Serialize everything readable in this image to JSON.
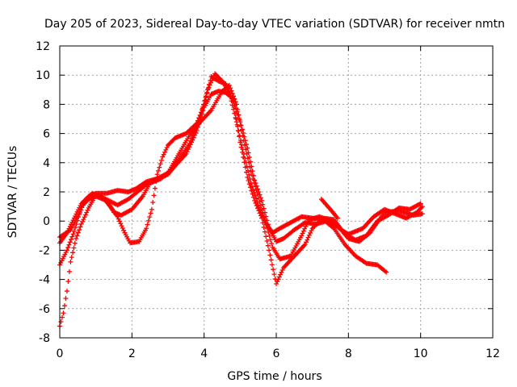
{
  "chart_data": {
    "type": "scatter",
    "title": "Day 205 of 2023, Sidereal Day-to-day VTEC variation (SDTVAR) for receiver nmtn",
    "xlabel": "GPS time / hours",
    "ylabel": "SDTVAR / TECUs",
    "xlim": [
      0,
      12
    ],
    "ylim": [
      -8,
      12
    ],
    "xticks": [
      "0",
      "2",
      "4",
      "6",
      "8",
      "10",
      "12"
    ],
    "yticks": [
      "-8",
      "-6",
      "-4",
      "-2",
      "0",
      "2",
      "4",
      "6",
      "8",
      "10",
      "12"
    ],
    "grid": true,
    "marker": "+",
    "color": "#ff0000",
    "series": [
      {
        "points": [
          [
            0,
            -1.1
          ],
          [
            0.3,
            -0.6
          ],
          [
            0.5,
            0.3
          ],
          [
            0.7,
            1.4
          ],
          [
            0.9,
            1.9
          ],
          [
            1.2,
            1.6
          ],
          [
            1.6,
            1.1
          ],
          [
            1.9,
            1.5
          ],
          [
            2.2,
            2.1
          ],
          [
            2.5,
            2.7
          ],
          [
            2.8,
            3.0
          ],
          [
            3.0,
            3.2
          ],
          [
            3.2,
            3.8
          ],
          [
            3.5,
            4.6
          ],
          [
            3.8,
            6.2
          ],
          [
            4.0,
            7.8
          ],
          [
            4.2,
            8.7
          ],
          [
            4.4,
            8.9
          ],
          [
            4.6,
            8.8
          ],
          [
            4.8,
            8.4
          ],
          [
            5.0,
            6.8
          ],
          [
            5.2,
            5.0
          ],
          [
            5.4,
            2.8
          ],
          [
            5.6,
            1.4
          ],
          [
            5.8,
            -0.5
          ],
          [
            6.0,
            -1.4
          ],
          [
            6.2,
            -1.2
          ],
          [
            6.5,
            -0.6
          ],
          [
            6.8,
            -0.1
          ],
          [
            7.1,
            -0.2
          ],
          [
            7.4,
            0.0
          ],
          [
            7.7,
            -0.3
          ],
          [
            8.0,
            -1.2
          ],
          [
            8.3,
            -1.4
          ],
          [
            8.6,
            -0.8
          ],
          [
            9.0,
            0.6
          ],
          [
            9.4,
            0.7
          ],
          [
            9.8,
            0.4
          ],
          [
            10.05,
            0.5
          ]
        ]
      },
      {
        "points": [
          [
            0,
            -3.0
          ],
          [
            0.2,
            -2.0
          ],
          [
            0.4,
            -0.7
          ],
          [
            0.6,
            1.0
          ],
          [
            0.8,
            1.5
          ],
          [
            1.0,
            1.7
          ],
          [
            1.3,
            1.4
          ],
          [
            1.5,
            0.6
          ],
          [
            1.7,
            0.4
          ],
          [
            2.0,
            0.8
          ],
          [
            2.3,
            1.7
          ],
          [
            2.5,
            2.6
          ],
          [
            2.8,
            2.9
          ],
          [
            3.0,
            3.3
          ],
          [
            3.3,
            4.6
          ],
          [
            3.6,
            5.9
          ],
          [
            3.9,
            6.8
          ],
          [
            4.2,
            7.6
          ],
          [
            4.5,
            8.9
          ],
          [
            4.7,
            9.3
          ],
          [
            4.9,
            8.0
          ],
          [
            5.1,
            5.5
          ],
          [
            5.3,
            3.4
          ],
          [
            5.6,
            0.8
          ],
          [
            5.9,
            -1.8
          ],
          [
            6.1,
            -2.6
          ],
          [
            6.4,
            -2.4
          ],
          [
            6.7,
            -1.0
          ],
          [
            6.9,
            0.1
          ],
          [
            7.2,
            0.3
          ],
          [
            7.5,
            0.0
          ],
          [
            7.8,
            -0.6
          ],
          [
            8.0,
            -0.9
          ],
          [
            8.4,
            -0.5
          ],
          [
            8.7,
            0.3
          ],
          [
            9.0,
            0.8
          ],
          [
            9.3,
            0.5
          ],
          [
            9.6,
            0.2
          ],
          [
            9.9,
            0.6
          ],
          [
            10.05,
            1.0
          ]
        ]
      },
      {
        "points": [
          [
            0,
            -7.2
          ],
          [
            0.1,
            -6.3
          ],
          [
            0.2,
            -4.8
          ],
          [
            0.3,
            -2.8
          ],
          [
            0.45,
            -1.2
          ],
          [
            0.6,
            -0.2
          ],
          [
            0.8,
            0.9
          ],
          [
            1.0,
            1.8
          ],
          [
            1.2,
            1.6
          ],
          [
            1.4,
            1.0
          ],
          [
            1.6,
            0.3
          ],
          [
            1.8,
            -0.8
          ],
          [
            1.95,
            -1.5
          ],
          [
            2.2,
            -1.4
          ],
          [
            2.4,
            -0.5
          ],
          [
            2.55,
            0.8
          ],
          [
            2.7,
            3.2
          ],
          [
            2.85,
            4.4
          ],
          [
            3.0,
            5.2
          ],
          [
            3.2,
            5.7
          ],
          [
            3.5,
            6.0
          ],
          [
            3.8,
            6.7
          ],
          [
            4.0,
            8.0
          ],
          [
            4.2,
            9.9
          ],
          [
            4.4,
            9.6
          ],
          [
            4.6,
            9.4
          ],
          [
            4.8,
            8.2
          ],
          [
            5.0,
            5.4
          ],
          [
            5.2,
            3.0
          ],
          [
            5.4,
            1.4
          ],
          [
            5.6,
            0.2
          ],
          [
            5.8,
            -2.0
          ],
          [
            6.0,
            -4.3
          ],
          [
            6.2,
            -3.2
          ],
          [
            6.5,
            -2.4
          ],
          [
            6.8,
            -1.6
          ],
          [
            7.0,
            -0.5
          ],
          [
            7.3,
            0.2
          ],
          [
            7.6,
            0.1
          ],
          [
            7.9,
            -0.9
          ],
          [
            8.2,
            -1.3
          ],
          [
            8.5,
            -1.0
          ],
          [
            8.8,
            0.0
          ],
          [
            9.1,
            0.4
          ],
          [
            9.4,
            0.9
          ],
          [
            9.7,
            0.8
          ],
          [
            10.0,
            1.2
          ]
        ]
      },
      {
        "points": [
          [
            0,
            -1.5
          ],
          [
            0.2,
            -0.8
          ],
          [
            0.4,
            0.2
          ],
          [
            0.6,
            1.2
          ],
          [
            0.8,
            1.7
          ],
          [
            1.0,
            1.9
          ],
          [
            1.3,
            1.9
          ],
          [
            1.6,
            2.1
          ],
          [
            1.9,
            2.0
          ],
          [
            2.1,
            2.2
          ],
          [
            2.4,
            2.7
          ],
          [
            2.7,
            2.9
          ],
          [
            3.0,
            3.3
          ],
          [
            3.3,
            4.2
          ],
          [
            3.6,
            5.3
          ],
          [
            3.9,
            7.2
          ],
          [
            4.1,
            9.0
          ],
          [
            4.3,
            10.1
          ],
          [
            4.5,
            9.6
          ],
          [
            4.7,
            8.8
          ],
          [
            4.9,
            6.8
          ],
          [
            5.1,
            4.6
          ],
          [
            5.3,
            2.6
          ],
          [
            5.5,
            1.1
          ],
          [
            5.7,
            -0.1
          ],
          [
            5.9,
            -0.8
          ],
          [
            6.1,
            -0.5
          ],
          [
            6.4,
            -0.1
          ],
          [
            6.7,
            0.3
          ],
          [
            7.0,
            0.2
          ],
          [
            7.3,
            0.1
          ],
          [
            7.6,
            -0.5
          ],
          [
            7.9,
            -1.6
          ],
          [
            8.2,
            -2.4
          ],
          [
            8.5,
            -2.9
          ],
          [
            8.8,
            -3.0
          ],
          [
            9.05,
            -3.5
          ]
        ]
      },
      {
        "points": [
          [
            7.25,
            1.5
          ],
          [
            7.5,
            0.8
          ],
          [
            7.7,
            0.2
          ]
        ]
      }
    ]
  }
}
